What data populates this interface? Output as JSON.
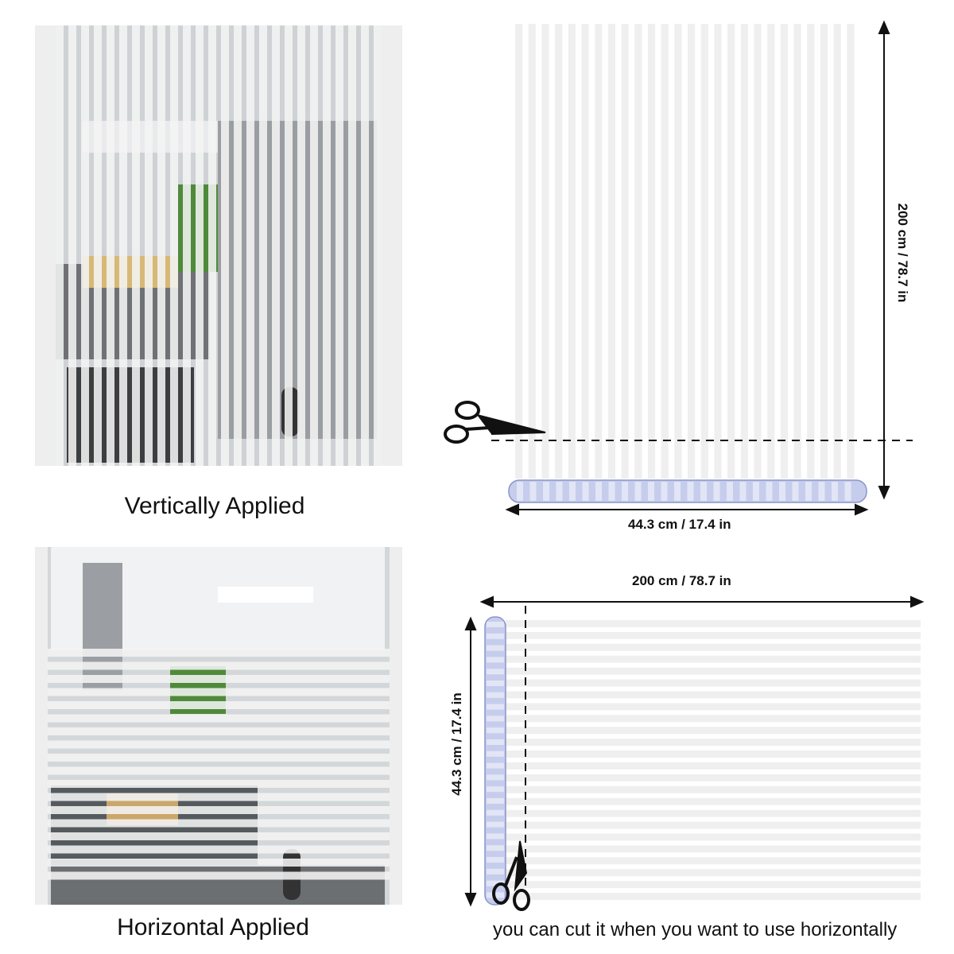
{
  "panels": {
    "vertical": {
      "caption": "Vertically Applied"
    },
    "horizontal": {
      "caption": "Horizontal Applied"
    }
  },
  "vertical_roll": {
    "height_label": "200 cm / 78.7 in",
    "width_label": "44.3 cm / 17.4 in",
    "stripe_count": 26,
    "icon": "scissors-icon"
  },
  "horizontal_roll": {
    "width_label": "200 cm / 78.7 in",
    "height_label": "44.3 cm / 17.4 in",
    "stripe_count": 24,
    "icon": "scissors-icon",
    "note": "you can cut it when you want to use horizontally"
  },
  "colors": {
    "stripe": "#efefef",
    "stripe_edge": "#dcdcdc",
    "roll": "#9aa7d8",
    "line": "#111111"
  }
}
